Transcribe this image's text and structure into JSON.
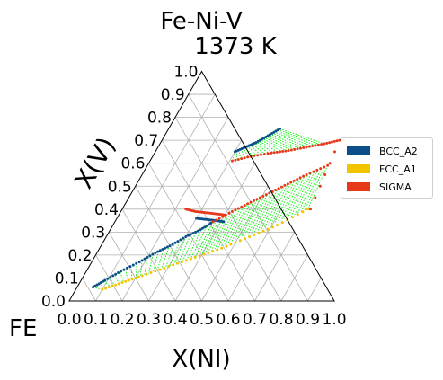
{
  "chart_data": {
    "type": "scatter",
    "title": "Fe-Ni-V",
    "subtitle": "1373  K",
    "corner_label": "FE",
    "xlabel": "X(NI)",
    "ylabel": "X(V)",
    "xlim": [
      0,
      1
    ],
    "ylim": [
      0,
      1
    ],
    "xticks": [
      "0.0",
      "0.1",
      "0.2",
      "0.3",
      "0.4",
      "0.5",
      "0.6",
      "0.7",
      "0.8",
      "0.9",
      "1.0"
    ],
    "yticks": [
      "0.0",
      "0.1",
      "0.2",
      "0.3",
      "0.4",
      "0.5",
      "0.6",
      "0.7",
      "0.8",
      "0.9",
      "1.0"
    ],
    "grid": true,
    "legend_position": "right",
    "tie_line_color": "#00ee00",
    "series": [
      {
        "name": "BCC_A2",
        "color": "#0b4f8a",
        "segments": [
          {
            "x": [
              0.06,
              0.09,
              0.13,
              0.18,
              0.22,
              0.26,
              0.3,
              0.34,
              0.37
            ],
            "y": [
              0.06,
              0.09,
              0.13,
              0.17,
              0.21,
              0.24,
              0.28,
              0.31,
              0.345
            ]
          },
          {
            "x": [
              0.3,
              0.33,
              0.36,
              0.39,
              0.42
            ],
            "y": [
              0.65,
              0.67,
              0.69,
              0.72,
              0.75
            ]
          },
          {
            "x": [
              0.3,
              0.34,
              0.38,
              0.41
            ],
            "y": [
              0.36,
              0.355,
              0.35,
              0.345
            ]
          }
        ]
      },
      {
        "name": "FCC_A1",
        "color": "#f2c400",
        "segments": [
          {
            "x": [
              0.1,
              0.16,
              0.22,
              0.3,
              0.38,
              0.46,
              0.54,
              0.62,
              0.7
            ],
            "y": [
              0.05,
              0.08,
              0.11,
              0.15,
              0.19,
              0.23,
              0.28,
              0.33,
              0.4
            ]
          }
        ]
      },
      {
        "name": "SIGMA",
        "color": "#e8381a",
        "segments": [
          {
            "x": [
              0.37,
              0.42,
              0.47,
              0.52,
              0.57,
              0.62,
              0.68
            ],
            "y": [
              0.345,
              0.39,
              0.43,
              0.47,
              0.51,
              0.55,
              0.59
            ]
          },
          {
            "x": [
              0.31,
              0.37,
              0.44,
              0.5,
              0.56,
              0.62,
              0.67,
              0.71
            ],
            "y": [
              0.61,
              0.63,
              0.645,
              0.655,
              0.67,
              0.685,
              0.7,
              0.4
            ]
          },
          {
            "x": [
              0.24,
              0.28,
              0.32,
              0.36,
              0.4
            ],
            "y": [
              0.4,
              0.39,
              0.385,
              0.38,
              0.375
            ]
          }
        ]
      }
    ],
    "tie_regions": [
      {
        "x1": [
          0.06,
          0.37
        ],
        "y1": [
          0.06,
          0.345
        ],
        "x2": [
          0.1,
          0.38
        ],
        "y2": [
          0.05,
          0.19
        ],
        "n": 22
      },
      {
        "x1": [
          0.37,
          0.68
        ],
        "y1": [
          0.345,
          0.59
        ],
        "x2": [
          0.38,
          0.7
        ],
        "y2": [
          0.19,
          0.4
        ],
        "n": 34
      },
      {
        "x1": [
          0.3,
          0.42
        ],
        "y1": [
          0.65,
          0.75
        ],
        "x2": [
          0.31,
          0.62
        ],
        "y2": [
          0.61,
          0.685
        ],
        "n": 22
      }
    ]
  }
}
